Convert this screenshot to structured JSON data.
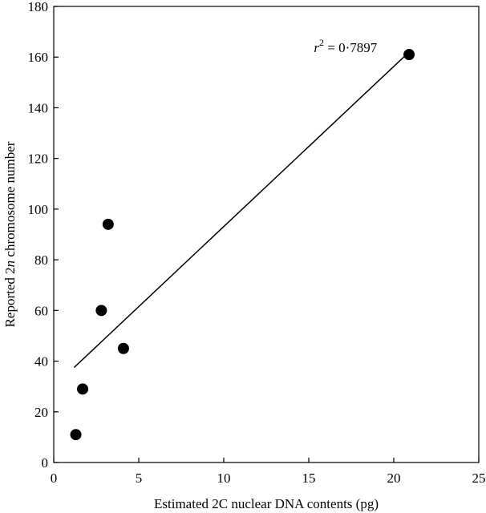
{
  "chart_data": {
    "type": "scatter",
    "xlabel": "Estimated 2C nuclear DNA contents (pg)",
    "ylabel": {
      "prefix": "Reported 2",
      "italic": "n",
      "suffix": " chromosome number"
    },
    "xlim": [
      0,
      25
    ],
    "ylim": [
      0,
      180
    ],
    "x_ticks": [
      0,
      5,
      10,
      15,
      20,
      25
    ],
    "y_ticks": [
      0,
      20,
      40,
      60,
      80,
      100,
      120,
      140,
      160,
      180
    ],
    "points": [
      {
        "x": 1.3,
        "y": 11
      },
      {
        "x": 1.7,
        "y": 29
      },
      {
        "x": 2.8,
        "y": 60
      },
      {
        "x": 3.2,
        "y": 94
      },
      {
        "x": 4.1,
        "y": 45
      },
      {
        "x": 20.9,
        "y": 161
      }
    ],
    "regression_line": {
      "x": [
        1.2,
        20.9
      ],
      "y": [
        37.5,
        162
      ]
    },
    "annotation": {
      "var": "r",
      "sup": "2",
      "text": " = 0·7897",
      "x": 15.3,
      "y": 162
    },
    "grid": false,
    "legend": "none"
  }
}
